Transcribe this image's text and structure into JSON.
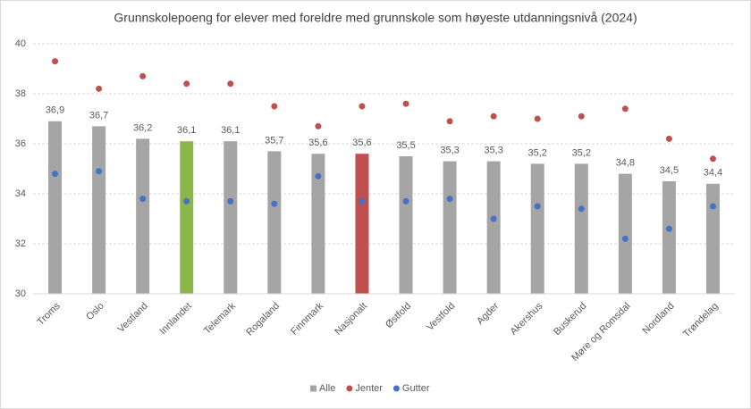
{
  "chart_data": {
    "type": "bar",
    "title": "Grunnskolepoeng for elever med foreldre med grunnskole som høyeste utdanningsnivå (2024)",
    "categories": [
      "Troms",
      "Oslo",
      "Vestland",
      "Innlandet",
      "Telemark",
      "Rogaland",
      "Finnmark",
      "Nasjonalt",
      "Østfold",
      "Vestfold",
      "Agder",
      "Akershus",
      "Buskerud",
      "Møre og Romsdal",
      "Nordland",
      "Trøndelag"
    ],
    "series": [
      {
        "name": "Alle",
        "type": "bar",
        "color": "#a5a5a5",
        "colors": [
          "#a5a5a5",
          "#a5a5a5",
          "#a5a5a5",
          "#8db64a",
          "#a5a5a5",
          "#a5a5a5",
          "#a5a5a5",
          "#c0504d",
          "#a5a5a5",
          "#a5a5a5",
          "#a5a5a5",
          "#a5a5a5",
          "#a5a5a5",
          "#a5a5a5",
          "#a5a5a5",
          "#a5a5a5"
        ],
        "values": [
          36.9,
          36.7,
          36.2,
          36.1,
          36.1,
          35.7,
          35.6,
          35.6,
          35.5,
          35.3,
          35.3,
          35.2,
          35.2,
          34.8,
          34.5,
          34.4
        ],
        "value_labels": [
          "36,9",
          "36,7",
          "36,2",
          "36,1",
          "36,1",
          "35,7",
          "35,6",
          "35,6",
          "35,5",
          "35,3",
          "35,3",
          "35,2",
          "35,2",
          "34,8",
          "34,5",
          "34,4"
        ]
      },
      {
        "name": "Jenter",
        "type": "scatter",
        "color": "#c0504d",
        "values": [
          39.3,
          38.2,
          38.7,
          38.4,
          38.4,
          37.5,
          36.7,
          37.5,
          37.6,
          36.9,
          37.1,
          37.0,
          37.1,
          37.4,
          36.2,
          35.4
        ]
      },
      {
        "name": "Gutter",
        "type": "scatter",
        "color": "#4472c4",
        "values": [
          34.8,
          34.9,
          33.8,
          33.7,
          33.7,
          33.6,
          34.7,
          33.7,
          33.7,
          33.8,
          33.0,
          33.5,
          33.4,
          32.2,
          32.6,
          33.5
        ]
      }
    ],
    "ylim": [
      30,
      40
    ],
    "yticks": [
      30,
      32,
      34,
      36,
      38,
      40
    ],
    "grid": true,
    "legend": "bottom"
  }
}
